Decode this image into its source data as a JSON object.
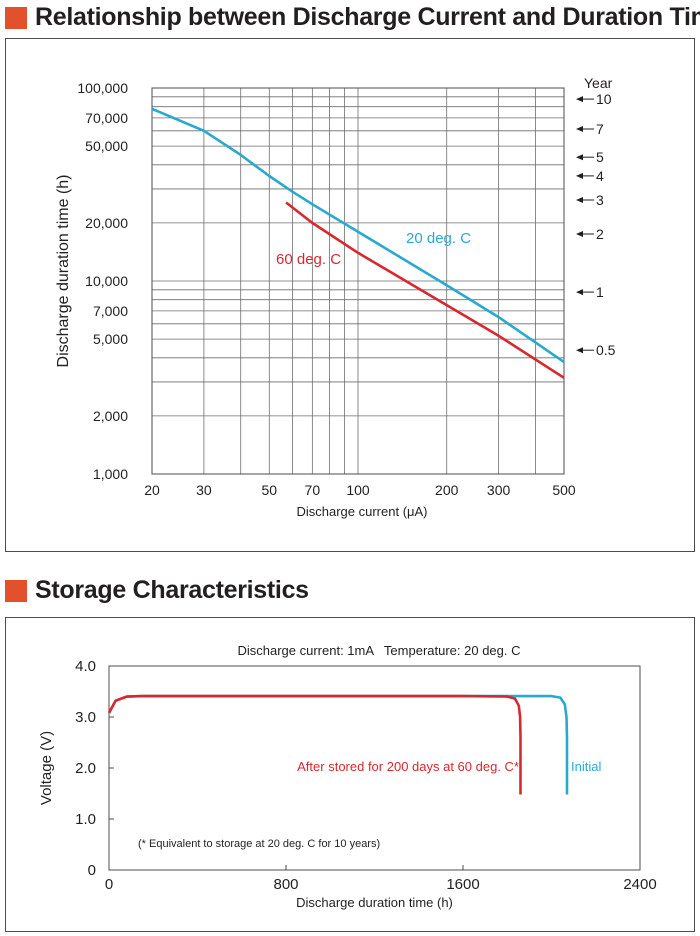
{
  "section1": {
    "title": "Relationship between Discharge Current and Duration Time"
  },
  "section2": {
    "title": "Storage Characteristics"
  },
  "chart_data": [
    {
      "type": "line",
      "title": "Relationship between Discharge Current and Duration Time",
      "xlabel": "Discharge current  (μA)",
      "ylabel": "Discharge duration time (h)",
      "x_scale": "log",
      "y_scale": "log",
      "xlim": [
        20,
        500
      ],
      "ylim": [
        1000,
        100000
      ],
      "x_ticks": [
        20,
        30,
        50,
        70,
        100,
        200,
        300,
        500
      ],
      "x_tick_labels": [
        "20",
        "30",
        "50",
        "70",
        "100",
        "200",
        "300",
        "500"
      ],
      "y_ticks": [
        1000,
        2000,
        5000,
        7000,
        10000,
        20000,
        50000,
        70000,
        100000
      ],
      "y_tick_labels": [
        "1,000",
        "2,000",
        "5,000",
        "7,000",
        "10,000",
        "20,000",
        "50,000",
        "70,000",
        "100,000"
      ],
      "x_gridlines": [
        20,
        30,
        40,
        50,
        60,
        70,
        80,
        90,
        100,
        200,
        300,
        400,
        500
      ],
      "y_gridlines": [
        1000,
        2000,
        3000,
        4000,
        5000,
        6000,
        7000,
        8000,
        9000,
        10000,
        20000,
        30000,
        40000,
        50000,
        60000,
        70000,
        80000,
        90000,
        100000
      ],
      "grid": true,
      "series": [
        {
          "name": "20 deg. C",
          "color": "#2aa9d0",
          "x": [
            20,
            30,
            40,
            50,
            60,
            70,
            100,
            200,
            300,
            500
          ],
          "y": [
            78000,
            60000,
            45000,
            35000,
            29000,
            25000,
            18000,
            9500,
            6500,
            3800
          ]
        },
        {
          "name": "60 deg. C",
          "color": "#d8282f",
          "x": [
            57,
            70,
            100,
            200,
            300,
            500
          ],
          "y": [
            25500,
            20000,
            14000,
            7500,
            5200,
            3150
          ]
        }
      ],
      "secondary_axis": {
        "title": "Year",
        "labels": [
          {
            "text": "10",
            "hours": 87600
          },
          {
            "text": "7",
            "hours": 61320
          },
          {
            "text": "5",
            "hours": 43800
          },
          {
            "text": "4",
            "hours": 35040
          },
          {
            "text": "3",
            "hours": 26280
          },
          {
            "text": "2",
            "hours": 17520
          },
          {
            "text": "1",
            "hours": 8760
          },
          {
            "text": "0.5",
            "hours": 4380
          }
        ]
      }
    },
    {
      "type": "line",
      "title": "Storage Characteristics",
      "subtitle": "Discharge current: 1mA   Temperature: 20 deg. C",
      "xlabel": "Discharge duration time (h)",
      "ylabel": "Voltage (V)",
      "xlim": [
        0,
        2400
      ],
      "ylim": [
        0,
        4.0
      ],
      "x_ticks": [
        0,
        800,
        1600,
        2400
      ],
      "x_tick_labels": [
        "0",
        "800",
        "1600",
        "2400"
      ],
      "y_ticks": [
        0,
        1.0,
        2.0,
        3.0,
        4.0
      ],
      "y_tick_labels": [
        "0",
        "1.0",
        "2.0",
        "3.0",
        "4.0"
      ],
      "grid": false,
      "series": [
        {
          "name": "Initial",
          "color": "#2aa9d0",
          "x": [
            0,
            30,
            80,
            150,
            1800,
            2000,
            2040,
            2060,
            2068,
            2070,
            2070
          ],
          "y": [
            3.08,
            3.32,
            3.4,
            3.41,
            3.41,
            3.41,
            3.38,
            3.25,
            3.0,
            2.6,
            1.48
          ]
        },
        {
          "name": "After stored for 200 days at 60 deg. C",
          "color": "#d8282f",
          "x": [
            0,
            30,
            80,
            150,
            1600,
            1800,
            1835,
            1852,
            1858,
            1860,
            1860
          ],
          "y": [
            3.08,
            3.32,
            3.4,
            3.41,
            3.41,
            3.4,
            3.36,
            3.22,
            3.0,
            2.6,
            1.48
          ]
        }
      ],
      "legend_labels": {
        "initial": "Initial",
        "stored": "After stored for 200 days at 60 deg. C*"
      },
      "annotation": "(* Equivalent to storage at 20 deg. C for 10 years)"
    }
  ]
}
